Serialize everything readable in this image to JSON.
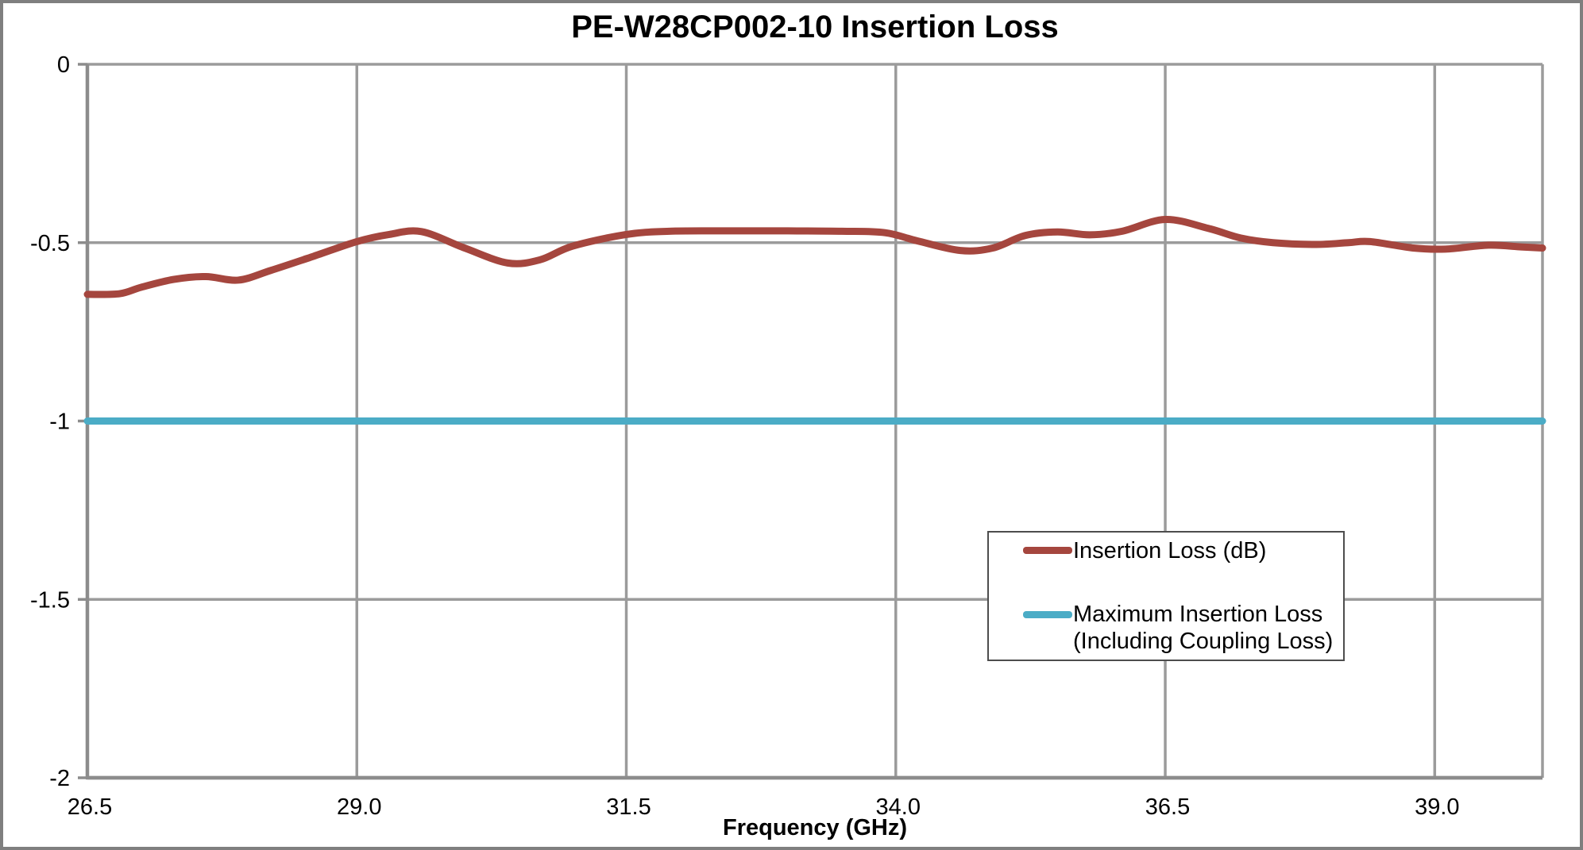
{
  "legend": {
    "series1": "Insertion Loss (dB)",
    "series2_line1": "Maximum Insertion Loss",
    "series2_line2": "(Including Coupling Loss)"
  },
  "colors": {
    "insertion_loss_red": "#A5463E",
    "max_loss_cyan": "#4BACC6",
    "gridline": "#9B9B9B",
    "axis": "#8C8C8C",
    "legend_border": "#4D4D4D",
    "frame_border": "#7F7F7F",
    "text": "#000000",
    "background": "#FFFFFF"
  },
  "chart_data": {
    "type": "line",
    "title": "PE-W28CP002-10 Insertion Loss",
    "xlabel": "Frequency (GHz)",
    "ylabel": "",
    "xlim": [
      26.5,
      40.0
    ],
    "ylim": [
      -2,
      0
    ],
    "x_tick_values": [
      26.5,
      29.0,
      31.5,
      34.0,
      36.5,
      39.0
    ],
    "x_tick_labels": [
      "26.5",
      "29.0",
      "31.5",
      "34.0",
      "36.5",
      "39.0"
    ],
    "x_grid_values": [
      26.5,
      29.0,
      31.5,
      34.0,
      36.5,
      39.0,
      40.0
    ],
    "y_tick_values": [
      0,
      -0.5,
      -1,
      -1.5,
      -2
    ],
    "y_tick_labels": [
      "0",
      "-0.5",
      "-1",
      "-1.5",
      "-2"
    ],
    "grid": true,
    "legend_position": "center-right",
    "series": [
      {
        "name": "Insertion Loss (dB)",
        "key": "insertion-loss",
        "color": "#A5463E",
        "smooth": true,
        "x": [
          26.5,
          26.8,
          27.0,
          27.3,
          27.6,
          27.9,
          28.2,
          28.6,
          29.0,
          29.3,
          29.6,
          30.0,
          30.4,
          30.7,
          31.0,
          31.5,
          31.9,
          32.4,
          33.0,
          33.5,
          33.9,
          34.2,
          34.6,
          34.9,
          35.2,
          35.5,
          35.8,
          36.1,
          36.5,
          36.9,
          37.2,
          37.5,
          37.9,
          38.2,
          38.4,
          38.8,
          39.1,
          39.5,
          39.8,
          40.0
        ],
        "y": [
          -0.645,
          -0.643,
          -0.625,
          -0.603,
          -0.595,
          -0.605,
          -0.578,
          -0.538,
          -0.497,
          -0.477,
          -0.469,
          -0.515,
          -0.557,
          -0.548,
          -0.51,
          -0.477,
          -0.468,
          -0.467,
          -0.467,
          -0.468,
          -0.472,
          -0.495,
          -0.522,
          -0.515,
          -0.48,
          -0.47,
          -0.478,
          -0.468,
          -0.435,
          -0.46,
          -0.487,
          -0.5,
          -0.505,
          -0.5,
          -0.497,
          -0.515,
          -0.518,
          -0.507,
          -0.512,
          -0.515
        ]
      },
      {
        "name": "Maximum Insertion Loss (Including Coupling Loss)",
        "key": "max-insertion-loss",
        "color": "#4BACC6",
        "smooth": false,
        "x": [
          26.5,
          40.0
        ],
        "y": [
          -1,
          -1
        ]
      }
    ]
  }
}
